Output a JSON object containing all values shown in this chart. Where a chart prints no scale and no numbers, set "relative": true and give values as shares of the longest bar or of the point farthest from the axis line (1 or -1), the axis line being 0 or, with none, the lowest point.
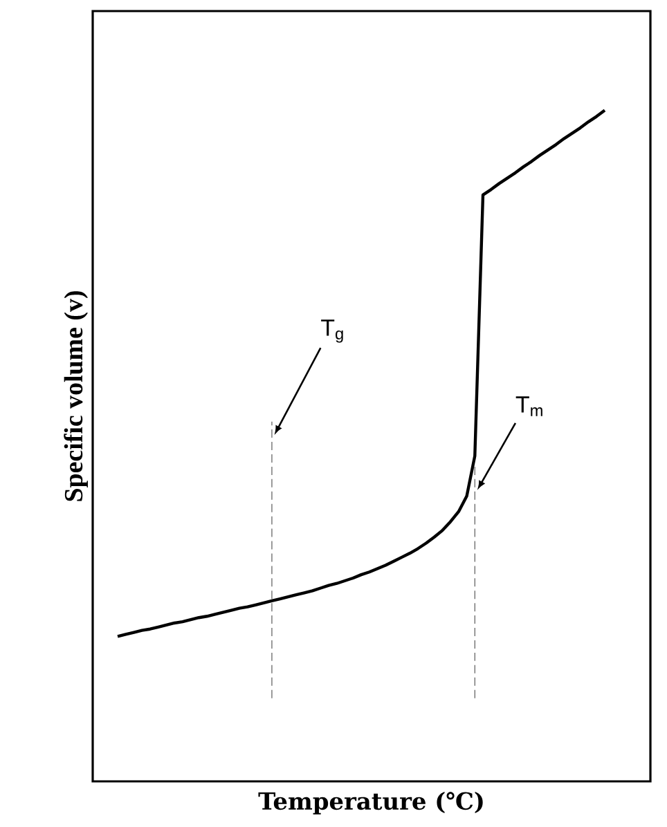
{
  "chart_data": {
    "type": "line",
    "xlabel": "Temperature (℃)",
    "ylabel": "Specific volume  (v)",
    "relative": true,
    "tick_labels": false,
    "categories": [
      null,
      null,
      null,
      null,
      null,
      null,
      null,
      null,
      null,
      null,
      null,
      null,
      null,
      null,
      null,
      null,
      null,
      null,
      null,
      null,
      null,
      null,
      null,
      null,
      null,
      null,
      null,
      null,
      null,
      null,
      null,
      null,
      null,
      null,
      null,
      null,
      null,
      null,
      null,
      null,
      null,
      null,
      null,
      null,
      null,
      null,
      null,
      null,
      null,
      null,
      null,
      null,
      null,
      null,
      null,
      null,
      null,
      null,
      null,
      null,
      null
    ],
    "series": [
      {
        "color": "#000000",
        "values": [
          0.216,
          0.219,
          0.222,
          0.225,
          0.227,
          0.23,
          0.233,
          0.236,
          0.238,
          0.241,
          0.244,
          0.246,
          0.249,
          0.252,
          0.255,
          0.258,
          0.26,
          0.263,
          0.266,
          0.269,
          0.272,
          0.275,
          0.278,
          0.281,
          0.284,
          0.288,
          0.292,
          0.295,
          0.299,
          0.303,
          0.308,
          0.312,
          0.317,
          0.322,
          0.328,
          0.334,
          0.34,
          0.347,
          0.355,
          0.364,
          0.374,
          0.387,
          0.402,
          0.425,
          0.485,
          0.874,
          0.882,
          0.891,
          0.899,
          0.907,
          0.916,
          0.924,
          0.933,
          0.941,
          0.949,
          0.958,
          0.966,
          0.974,
          0.983,
          0.991,
          1
        ]
      }
    ],
    "annotations": [
      "T$_{g}$",
      "T$_{m}$"
    ]
  }
}
